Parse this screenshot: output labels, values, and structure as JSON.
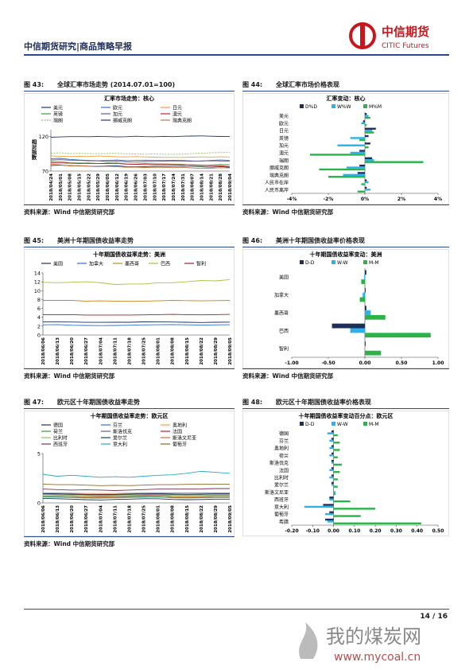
{
  "header": {
    "title": "中信期货研究|商品策略早报",
    "brand_cn": "中信期货",
    "brand_en": "CITIC Futures"
  },
  "figures": [
    {
      "label": "图 43:",
      "caption": "全球汇率市场走势 (2014.07.01=100)",
      "source": "资料来源：Wind  中信期货研究部",
      "chart_data": {
        "type": "line",
        "title": "汇率市场走势：核心",
        "y_label": "相对指数",
        "categories": [
          "2018/04/24",
          "2018/05/01",
          "2018/05/08",
          "2018/05/15",
          "2018/05/22",
          "2018/05/29",
          "2018/06/05",
          "2018/06/12",
          "2018/06/19",
          "2018/06/26",
          "2018/07/03",
          "2018/07/10",
          "2018/07/17",
          "2018/07/24",
          "2018/07/31",
          "2018/08/07",
          "2018/08/14",
          "2018/08/21",
          "2018/08/28",
          "2018/09/04"
        ],
        "ylim": [
          70,
          130
        ],
        "yticks": [
          70,
          120
        ],
        "series": [
          {
            "name": "美元",
            "color": "#1f3864",
            "values": [
              119,
              119.5,
              120,
              120,
              119.8,
              120.2,
              120,
              119.5,
              119.8,
              120.5,
              120,
              119.8,
              120.3,
              120,
              120.5,
              120.8,
              121,
              120.5,
              120.2,
              120.3
            ]
          },
          {
            "name": "欧元",
            "color": "#2e6fd0",
            "values": [
              88,
              88.5,
              87,
              86,
              85.5,
              85,
              85.5,
              86,
              85,
              85.5,
              85.8,
              85.5,
              85.3,
              85.6,
              85.4,
              84.8,
              84.5,
              85.5,
              86,
              85.5
            ]
          },
          {
            "name": "日元",
            "color": "#f0a040",
            "values": [
              92,
              91.5,
              91,
              91.5,
              91,
              91.8,
              91.5,
              90.8,
              90.5,
              91,
              90.5,
              90.2,
              89.8,
              90,
              89.8,
              90.2,
              90.5,
              90.3,
              90.6,
              90.4
            ]
          },
          {
            "name": "英镑",
            "color": "#3a9a3a",
            "values": [
              84,
              83.5,
              82,
              81.5,
              81.8,
              81,
              81.5,
              81.8,
              80.5,
              80.2,
              80.8,
              80.5,
              80.3,
              80,
              79.8,
              78.5,
              78,
              78.8,
              79.5,
              79.2
            ]
          },
          {
            "name": "加元",
            "color": "#6a5a8a",
            "values": [
              86,
              86.5,
              85.8,
              85.5,
              85,
              84.8,
              84,
              84.5,
              83.5,
              83,
              83.8,
              84,
              84.3,
              84.8,
              84.5,
              84.2,
              84.8,
              85,
              84.6,
              84.2
            ]
          },
          {
            "name": "澳元",
            "color": "#c0202a",
            "values": [
              82,
              81.8,
              81.5,
              81,
              81.2,
              80.8,
              81,
              81.2,
              80,
              79.8,
              79.5,
              79.3,
              79.6,
              79.2,
              79.4,
              79,
              78.5,
              78,
              77.8,
              76.5
            ]
          },
          {
            "name": "瑞朗",
            "color": "#8cc060",
            "style": "dashed",
            "values": [
              96,
              96.5,
              95.5,
              95.8,
              95.5,
              95.2,
              95.6,
              95.8,
              95,
              94.8,
              94.5,
              94.8,
              94.5,
              94.2,
              94.5,
              95.5,
              96,
              96.5,
              96.8,
              97
            ]
          },
          {
            "name": "挪威克朗",
            "color": "#203a70",
            "values": [
              78,
              78.5,
              78,
              77.5,
              77.2,
              76.8,
              77.5,
              77.8,
              76.5,
              76.2,
              76.5,
              76.8,
              77,
              76.8,
              77.2,
              76.8,
              76.2,
              75.8,
              76.5,
              75.5
            ]
          },
          {
            "name": "瑞典克朗",
            "color": "#d07030",
            "values": [
              80,
              79,
              77.5,
              77.8,
              77,
              76.5,
              77,
              76.2,
              75.5,
              75.8,
              75.2,
              75.5,
              75.3,
              75,
              75.4,
              74.5,
              73.8,
              74.2,
              74.8,
              74.5
            ]
          }
        ]
      }
    },
    {
      "label": "图 44:",
      "caption": "全球汇率市场价格表现",
      "source": "资料来源：Wind  中信期货研究部",
      "chart_data": {
        "type": "bar",
        "orientation": "horizontal",
        "title": "汇率变动：核心",
        "categories": [
          "美元",
          "欧元",
          "日元",
          "英镑",
          "加元",
          "澳元",
          "瑞朗",
          "挪威克朗",
          "瑞典克朗",
          "人民币在岸",
          "人民币离岸"
        ],
        "xlim": [
          -4,
          4
        ],
        "xticks": [
          {
            "value": -4,
            "label": "-4%"
          },
          {
            "value": -2,
            "label": "-2%"
          },
          {
            "value": 0,
            "label": "0%"
          },
          {
            "value": 2,
            "label": "2%"
          },
          {
            "value": 4,
            "label": "4%"
          }
        ],
        "series": [
          {
            "name": "D%D",
            "color": "#1f2d5a",
            "values": [
              0.1,
              -0.1,
              0.6,
              0.2,
              0.3,
              -0.3,
              0.4,
              -0.3,
              -0.4,
              0.1,
              0.1
            ]
          },
          {
            "name": "W%W",
            "color": "#2ab3e8",
            "values": [
              0.2,
              -0.2,
              0.4,
              -0.8,
              -1.5,
              -0.8,
              0.5,
              -1,
              -1.2,
              0.2,
              0.3
            ]
          },
          {
            "name": "M%M",
            "color": "#2bb34a",
            "values": [
              0.3,
              0.1,
              0.5,
              -0.3,
              0.2,
              -3,
              3.2,
              -2.5,
              -2,
              -0.2,
              -0.4
            ]
          }
        ]
      }
    },
    {
      "label": "图 45:",
      "caption": "美洲十年期国债收益率走势",
      "source": "资料来源：Wind  中信期货研究部",
      "chart_data": {
        "type": "line",
        "title": "十年期国债收益率走势：美洲",
        "categories": [
          "2018/06/06",
          "2018/06/13",
          "2018/06/20",
          "2018/06/27",
          "2018/07/04",
          "2018/07/11",
          "2018/07/18",
          "2018/07/25",
          "2018/08/01",
          "2018/08/08",
          "2018/08/15",
          "2018/08/22",
          "2018/08/29",
          "2018/09/05"
        ],
        "ylim": [
          0,
          14
        ],
        "yticks": [
          0,
          2,
          4,
          6,
          8,
          10,
          12,
          14
        ],
        "series": [
          {
            "name": "美国",
            "color": "#1f2d5a",
            "values": [
              2.95,
              2.95,
              2.92,
              2.85,
              2.85,
              2.87,
              2.87,
              2.96,
              2.98,
              2.93,
              2.88,
              2.82,
              2.88,
              2.9
            ]
          },
          {
            "name": "加拿大",
            "color": "#2e6fd0",
            "values": [
              2.3,
              2.35,
              2.2,
              2.15,
              2.12,
              2.15,
              2.2,
              2.28,
              2.32,
              2.35,
              2.3,
              2.22,
              2.28,
              2.32
            ]
          },
          {
            "name": "墨西哥",
            "color": "#c8841a",
            "values": [
              7.8,
              7.8,
              7.8,
              7.65,
              7.7,
              7.65,
              7.6,
              7.65,
              7.7,
              7.8,
              7.75,
              7.7,
              7.75,
              7.8
            ]
          },
          {
            "name": "巴西",
            "color": "#a8c040",
            "values": [
              11.9,
              11.8,
              11.9,
              12,
              11.8,
              11.4,
              11.5,
              11.5,
              11.8,
              11.8,
              12,
              12.3,
              12.2,
              12.5
            ]
          },
          {
            "name": "智利",
            "color": "#a02020",
            "values": [
              4.6,
              4.6,
              4.6,
              4.5,
              4.5,
              4.5,
              4.5,
              4.55,
              4.6,
              4.65,
              4.6,
              4.55,
              4.6,
              4.65
            ]
          }
        ]
      }
    },
    {
      "label": "图 46:",
      "caption": "美洲十年期国债收益率价格表现",
      "source": "资料来源：Wind  中信期货研究部",
      "chart_data": {
        "type": "bar",
        "orientation": "horizontal",
        "title": "十年期国债收益率变动：美洲",
        "categories": [
          "美国",
          "加拿大",
          "墨西哥",
          "巴西",
          "智利"
        ],
        "xlim": [
          -1,
          1
        ],
        "xticks": [
          {
            "value": -1,
            "label": "-1.00"
          },
          {
            "value": -0.5,
            "label": "-0.50"
          },
          {
            "value": 0,
            "label": "0.00"
          },
          {
            "value": 0.5,
            "label": "0.50"
          },
          {
            "value": 1,
            "label": "1.00"
          }
        ],
        "series": [
          {
            "name": "D-D",
            "color": "#1f2d5a",
            "values": [
              0.02,
              0.01,
              0.02,
              -0.45,
              0.01
            ]
          },
          {
            "name": "W-W",
            "color": "#2ab3e8",
            "values": [
              -0.01,
              -0.03,
              0.08,
              -0.2,
              0
            ]
          },
          {
            "name": "M-M",
            "color": "#2bb34a",
            "values": [
              -0.05,
              -0.07,
              0.28,
              0.9,
              0.22
            ]
          }
        ]
      }
    },
    {
      "label": "图 47:",
      "caption": "欧元区十年期国债收益率走势",
      "source": "资料来源：Wind  中信期货研究部",
      "chart_data": {
        "type": "line",
        "title": "十年期国债收益率走势：欧元区",
        "categories": [
          "2018/06/06",
          "2018/06/13",
          "2018/06/20",
          "2018/06/27",
          "2018/07/04",
          "2018/07/11",
          "2018/07/18",
          "2018/07/25",
          "2018/08/01",
          "2018/08/08",
          "2018/08/15",
          "2018/08/22",
          "2018/08/29",
          "2018/09/05"
        ],
        "ylim": [
          0,
          5
        ],
        "yticks": [
          0,
          5
        ],
        "series": [
          {
            "name": "德国",
            "color": "#1f2d5a",
            "values": [
              0.45,
              0.42,
              0.38,
              0.32,
              0.3,
              0.35,
              0.38,
              0.42,
              0.42,
              0.35,
              0.32,
              0.34,
              0.38,
              0.38
            ]
          },
          {
            "name": "芬兰",
            "color": "#2e6fd0",
            "values": [
              0.65,
              0.62,
              0.6,
              0.55,
              0.52,
              0.55,
              0.58,
              0.62,
              0.62,
              0.55,
              0.52,
              0.55,
              0.58,
              0.58
            ]
          },
          {
            "name": "奥地利",
            "color": "#f0a040",
            "values": [
              0.7,
              0.68,
              0.65,
              0.6,
              0.58,
              0.62,
              0.65,
              0.68,
              0.7,
              0.62,
              0.6,
              0.62,
              0.65,
              0.65
            ]
          },
          {
            "name": "荷兰",
            "color": "#3a9a3a",
            "values": [
              0.6,
              0.58,
              0.55,
              0.5,
              0.48,
              0.52,
              0.55,
              0.58,
              0.6,
              0.52,
              0.5,
              0.52,
              0.55,
              0.55
            ]
          },
          {
            "name": "斯洛伐克",
            "color": "#6a5a8a",
            "values": [
              0.9,
              0.88,
              0.85,
              0.82,
              0.8,
              0.82,
              0.85,
              0.88,
              0.9,
              0.85,
              0.82,
              0.85,
              0.88,
              0.88
            ]
          },
          {
            "name": "法国",
            "color": "#c0202a",
            "values": [
              0.8,
              0.78,
              0.75,
              0.7,
              0.65,
              0.7,
              0.72,
              0.75,
              0.78,
              0.72,
              0.7,
              0.72,
              0.75,
              0.75
            ]
          },
          {
            "name": "比利时",
            "color": "#8cc060",
            "values": [
              0.8,
              0.8,
              0.75,
              0.72,
              0.7,
              0.73,
              0.75,
              0.8,
              0.82,
              0.75,
              0.72,
              0.75,
              0.78,
              0.78
            ]
          },
          {
            "name": "爱尔兰",
            "color": "#203a70",
            "values": [
              0.95,
              0.92,
              0.9,
              0.85,
              0.85,
              0.85,
              0.9,
              0.95,
              0.95,
              0.9,
              0.88,
              0.9,
              0.92,
              0.92
            ]
          },
          {
            "name": "斯洛文尼亚",
            "color": "#d07030",
            "values": [
              1,
              1,
              0.98,
              0.95,
              0.95,
              0.95,
              0.98,
              1,
              1.02,
              1,
              1,
              1,
              1.02,
              1.02
            ]
          },
          {
            "name": "西班牙",
            "color": "#7a3050",
            "values": [
              1.4,
              1.35,
              1.3,
              1.32,
              1.3,
              1.25,
              1.3,
              1.35,
              1.4,
              1.4,
              1.4,
              1.42,
              1.45,
              1.45
            ]
          },
          {
            "name": "意大利",
            "color": "#2aa8c8",
            "values": [
              2.9,
              2.7,
              2.8,
              2.7,
              2.6,
              2.65,
              2.6,
              2.7,
              2.8,
              2.85,
              3,
              3.2,
              3.1,
              3
            ]
          },
          {
            "name": "葡萄牙",
            "color": "#8a6a2a",
            "values": [
              1.9,
              1.85,
              1.85,
              1.8,
              1.75,
              1.78,
              1.75,
              1.8,
              1.85,
              1.85,
              1.88,
              1.9,
              1.9,
              1.9
            ]
          }
        ]
      }
    },
    {
      "label": "图 48:",
      "caption": "欧元区十年期国债收益率价格表现",
      "source": "",
      "chart_data": {
        "type": "bar",
        "orientation": "horizontal",
        "title": "十年期国债收益率变动百分点：欧元区",
        "categories": [
          "德国",
          "芬兰",
          "奥地利",
          "荷兰",
          "斯洛伐克",
          "法国",
          "比利时",
          "爱尔兰",
          "斯洛文尼亚",
          "西班牙",
          "意大利",
          "葡萄牙",
          "希腊"
        ],
        "xlim": [
          -0.2,
          0.5
        ],
        "xticks": [
          {
            "value": -0.2,
            "label": "-0.20"
          },
          {
            "value": -0.1,
            "label": "-0.10"
          },
          {
            "value": 0,
            "label": "0.00"
          },
          {
            "value": 0.1,
            "label": "0.10"
          },
          {
            "value": 0.2,
            "label": "0.20"
          },
          {
            "value": 0.3,
            "label": "0.30"
          },
          {
            "value": 0.4,
            "label": "0.40"
          },
          {
            "value": 0.5,
            "label": "0.50"
          }
        ],
        "series": [
          {
            "name": "D-D",
            "color": "#1f2d5a",
            "values": [
              -0.01,
              -0.01,
              -0.01,
              -0.01,
              -0.01,
              -0.01,
              -0.01,
              -0.01,
              0,
              -0.02,
              -0.05,
              -0.02,
              -0.04
            ]
          },
          {
            "name": "W-W",
            "color": "#2ab3e8",
            "values": [
              -0.03,
              -0.02,
              -0.02,
              -0.02,
              -0.01,
              -0.02,
              -0.02,
              -0.01,
              0.01,
              -0.02,
              -0.14,
              -0.04,
              -0.03
            ]
          },
          {
            "name": "M-M",
            "color": "#2bb34a",
            "values": [
              0.02,
              0.03,
              0.03,
              0.02,
              0.04,
              0.03,
              0.02,
              0.02,
              0.01,
              0.08,
              0.2,
              0.13,
              0.42
            ]
          }
        ]
      }
    }
  ],
  "footer": {
    "page": "14 / 16",
    "watermark_cn": "我的煤炭网",
    "watermark_url": "www.mycoal.cn"
  }
}
